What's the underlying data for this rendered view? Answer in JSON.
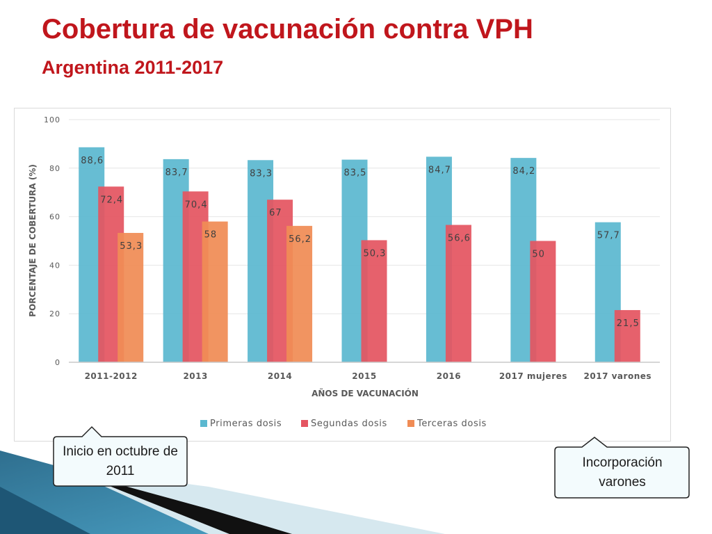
{
  "slide": {
    "title": "Cobertura de vacunación contra VPH",
    "subtitle": "Argentina 2011-2017"
  },
  "chart_data": {
    "type": "bar",
    "xlabel": "AÑOS DE VACUNACIÓN",
    "ylabel": "PORCENTAJE DE COBERTURA (%)",
    "ylim": [
      0,
      100
    ],
    "yticks": [
      "0",
      "20",
      "40",
      "60",
      "80",
      "100"
    ],
    "grid": true,
    "legend_position": "bottom",
    "categories": [
      "2011-2012",
      "2013",
      "2014",
      "2015",
      "2016",
      "2017 mujeres",
      "2017 varones"
    ],
    "series": [
      {
        "name": "Primeras dosis",
        "color": "#5bb8d0",
        "values": [
          88.6,
          83.7,
          83.3,
          83.5,
          84.7,
          84.2,
          57.7
        ],
        "labels": [
          "88,6",
          "83,7",
          "83,3",
          "83,5",
          "84,7",
          "84,2",
          "57,7"
        ]
      },
      {
        "name": "Segundas dosis",
        "color": "#e45561",
        "values": [
          72.4,
          70.4,
          67,
          50.3,
          56.6,
          50,
          21.5
        ],
        "labels": [
          "72,4",
          "70,4",
          "67",
          "50,3",
          "56,6",
          "50",
          "21,5"
        ]
      },
      {
        "name": "Terceras dosis",
        "color": "#f08c55",
        "values": [
          53.3,
          58,
          56.2,
          null,
          null,
          null,
          null
        ],
        "labels": [
          "53,3",
          "58",
          "56,2",
          "",
          "",
          "",
          ""
        ]
      }
    ]
  },
  "callouts": {
    "left_text": "Inicio en octubre de 2011",
    "right_text": "Incorporación varones"
  }
}
